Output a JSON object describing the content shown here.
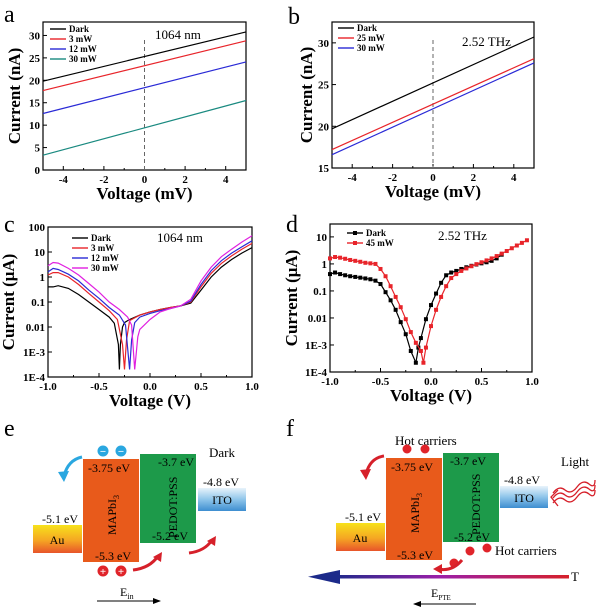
{
  "panels": {
    "a": "a",
    "b": "b",
    "c": "c",
    "d": "d",
    "e": "e",
    "f": "f"
  },
  "chart_data": [
    {
      "id": "a",
      "type": "line",
      "annotation": "1064 nm",
      "xlabel": "Voltage (mV)",
      "ylabel": "Current (nA)",
      "xlim": [
        -5,
        5
      ],
      "ylim": [
        0,
        33
      ],
      "xticks": [
        -4,
        -2,
        0,
        2,
        4
      ],
      "xtick_labels": [
        "-4",
        "-2",
        "0",
        "2",
        "4"
      ],
      "yticks": [
        0,
        5,
        10,
        15,
        20,
        25,
        30
      ],
      "ytick_labels": [
        "0",
        "5",
        "10",
        "15",
        "20",
        "25",
        "30"
      ],
      "vline_x": 0,
      "legend_position": "top-left",
      "series": [
        {
          "name": "Dark",
          "color": "#000000",
          "x": [
            -5,
            5
          ],
          "y": [
            19.8,
            30.8
          ]
        },
        {
          "name": "3 mW",
          "color": "#e8242a",
          "x": [
            -5,
            5
          ],
          "y": [
            17.7,
            28.8
          ]
        },
        {
          "name": "12 mW",
          "color": "#2a2ad6",
          "x": [
            -5,
            5
          ],
          "y": [
            12.6,
            24.1
          ]
        },
        {
          "name": "30 mW",
          "color": "#1a8a80",
          "x": [
            -5,
            5
          ],
          "y": [
            3.3,
            15.5
          ]
        }
      ]
    },
    {
      "id": "b",
      "type": "line",
      "annotation": "2.52 THz",
      "xlabel": "Voltage (mV)",
      "ylabel": "Current (nA)",
      "xlim": [
        -5,
        5
      ],
      "ylim": [
        15,
        32.5
      ],
      "xticks": [
        -4,
        -2,
        0,
        2,
        4
      ],
      "xtick_labels": [
        "-4",
        "-2",
        "0",
        "2",
        "4"
      ],
      "yticks": [
        15,
        20,
        25,
        30
      ],
      "ytick_labels": [
        "15",
        "20",
        "25",
        "30"
      ],
      "vline_x": 0,
      "legend_position": "top-left",
      "series": [
        {
          "name": "Dark",
          "color": "#000000",
          "x": [
            -5,
            5
          ],
          "y": [
            19.7,
            30.7
          ]
        },
        {
          "name": "25 mW",
          "color": "#e8242a",
          "x": [
            -5,
            5
          ],
          "y": [
            17.2,
            28.1
          ]
        },
        {
          "name": "30 mW",
          "color": "#2a2ad6",
          "x": [
            -5,
            5
          ],
          "y": [
            16.6,
            27.6
          ]
        }
      ]
    },
    {
      "id": "c",
      "type": "line",
      "yscale": "log",
      "annotation": "1064 nm",
      "xlabel": "Voltage (V)",
      "ylabel": "Current (μA)",
      "xlim": [
        -1.0,
        1.0
      ],
      "ylim": [
        0.0001,
        100
      ],
      "xticks": [
        -1.0,
        -0.5,
        0.0,
        0.5,
        1.0
      ],
      "xtick_labels": [
        "-1.0",
        "-0.5",
        "0.0",
        "0.5",
        "1.0"
      ],
      "yticks": [
        0.0001,
        0.001,
        0.01,
        0.1,
        1,
        10,
        100
      ],
      "ytick_labels": [
        "1E-4",
        "1E-3",
        "0.01",
        "0.1",
        "1",
        "10",
        "100"
      ],
      "legend_position": "top-left",
      "series": [
        {
          "name": "Dark",
          "color": "#000000",
          "x": [
            -1.0,
            -0.95,
            -0.9,
            -0.8,
            -0.7,
            -0.6,
            -0.5,
            -0.4,
            -0.35,
            -0.31,
            -0.3,
            -0.29,
            -0.27,
            -0.25,
            -0.2,
            -0.1,
            0.0,
            0.1,
            0.2,
            0.3,
            0.4,
            0.5,
            0.6,
            0.7,
            0.8,
            0.9,
            1.0
          ],
          "y": [
            0.4,
            0.4,
            0.45,
            0.35,
            0.2,
            0.1,
            0.05,
            0.025,
            0.014,
            0.002,
            0.0002,
            0.002,
            0.01,
            0.015,
            0.02,
            0.03,
            0.04,
            0.05,
            0.06,
            0.07,
            0.09,
            0.3,
            1.0,
            2.5,
            5,
            9,
            15
          ]
        },
        {
          "name": "3 mW",
          "color": "#e8242a",
          "x": [
            -1.0,
            -0.95,
            -0.9,
            -0.8,
            -0.7,
            -0.6,
            -0.5,
            -0.4,
            -0.32,
            -0.27,
            -0.25,
            -0.23,
            -0.2,
            -0.1,
            0.0,
            0.1,
            0.2,
            0.3,
            0.4,
            0.5,
            0.6,
            0.7,
            0.8,
            0.9,
            1.0
          ],
          "y": [
            1.2,
            1.5,
            1.5,
            1.0,
            0.5,
            0.22,
            0.1,
            0.045,
            0.02,
            0.002,
            0.0002,
            0.003,
            0.018,
            0.03,
            0.04,
            0.05,
            0.06,
            0.07,
            0.1,
            0.4,
            1.4,
            3.5,
            7,
            13,
            22
          ]
        },
        {
          "name": "12 mW",
          "color": "#2a2ad6",
          "x": [
            -1.0,
            -0.95,
            -0.9,
            -0.8,
            -0.7,
            -0.6,
            -0.5,
            -0.4,
            -0.3,
            -0.24,
            -0.2,
            -0.18,
            -0.15,
            -0.1,
            0.0,
            0.1,
            0.2,
            0.3,
            0.4,
            0.5,
            0.6,
            0.7,
            0.8,
            0.9,
            1.0
          ],
          "y": [
            1.6,
            2.2,
            2.0,
            1.3,
            0.7,
            0.3,
            0.14,
            0.06,
            0.03,
            0.012,
            0.0002,
            0.003,
            0.015,
            0.025,
            0.035,
            0.045,
            0.055,
            0.07,
            0.11,
            0.5,
            1.8,
            4.5,
            9,
            16,
            28
          ]
        },
        {
          "name": "30 mW",
          "color": "#e020e0",
          "x": [
            -1.0,
            -0.95,
            -0.9,
            -0.8,
            -0.7,
            -0.6,
            -0.5,
            -0.4,
            -0.3,
            -0.22,
            -0.18,
            -0.15,
            -0.12,
            -0.1,
            0.0,
            0.1,
            0.2,
            0.3,
            0.4,
            0.5,
            0.6,
            0.7,
            0.8,
            0.9,
            1.0
          ],
          "y": [
            2.8,
            3.8,
            3.6,
            2.2,
            1.2,
            0.55,
            0.25,
            0.1,
            0.05,
            0.025,
            0.012,
            0.0002,
            0.004,
            0.008,
            0.02,
            0.04,
            0.055,
            0.07,
            0.13,
            0.7,
            2.5,
            6.5,
            13,
            25,
            45
          ]
        }
      ]
    },
    {
      "id": "d",
      "type": "line",
      "yscale": "log",
      "annotation": "2.52 THz",
      "xlabel": "Voltage (V)",
      "ylabel": "Current (μA)",
      "xlim": [
        -1.0,
        1.0
      ],
      "ylim": [
        0.0001,
        30
      ],
      "xticks": [
        -1.0,
        -0.5,
        0.0,
        0.5,
        1.0
      ],
      "xtick_labels": [
        "-1.0",
        "-0.5",
        "0.0",
        "0.5",
        "1.0"
      ],
      "yticks": [
        0.0001,
        0.001,
        0.01,
        0.1,
        1,
        10
      ],
      "ytick_labels": [
        "1E-4",
        "1E-3",
        "0.01",
        "0.1",
        "1",
        "10"
      ],
      "legend_position": "top-left",
      "markers": "square",
      "series": [
        {
          "name": "Dark",
          "color": "#000000",
          "x": [
            -1.0,
            -0.95,
            -0.9,
            -0.85,
            -0.8,
            -0.75,
            -0.7,
            -0.65,
            -0.6,
            -0.55,
            -0.5,
            -0.45,
            -0.4,
            -0.35,
            -0.3,
            -0.25,
            -0.2,
            -0.15,
            -0.125,
            -0.1,
            -0.05,
            0.0,
            0.05,
            0.1,
            0.15,
            0.2,
            0.25,
            0.3,
            0.35,
            0.4,
            0.45,
            0.5,
            0.55,
            0.6,
            0.65,
            0.7
          ],
          "y": [
            0.42,
            0.48,
            0.42,
            0.38,
            0.35,
            0.33,
            0.31,
            0.29,
            0.27,
            0.24,
            0.18,
            0.09,
            0.045,
            0.02,
            0.007,
            0.0025,
            0.0006,
            0.00022,
            0.0008,
            0.0018,
            0.009,
            0.03,
            0.08,
            0.2,
            0.38,
            0.48,
            0.55,
            0.65,
            0.75,
            0.85,
            0.95,
            1.05,
            1.15,
            1.3,
            1.6,
            2.2
          ]
        },
        {
          "name": "45 mW",
          "color": "#e8242a",
          "x": [
            -1.0,
            -0.95,
            -0.9,
            -0.85,
            -0.8,
            -0.75,
            -0.7,
            -0.65,
            -0.6,
            -0.55,
            -0.5,
            -0.45,
            -0.4,
            -0.35,
            -0.3,
            -0.25,
            -0.2,
            -0.15,
            -0.1,
            -0.075,
            -0.05,
            0.0,
            0.05,
            0.1,
            0.15,
            0.2,
            0.25,
            0.3,
            0.35,
            0.4,
            0.45,
            0.5,
            0.55,
            0.6,
            0.65,
            0.7,
            0.75,
            0.8,
            0.85,
            0.9,
            0.95
          ],
          "y": [
            1.6,
            1.8,
            1.7,
            1.55,
            1.4,
            1.3,
            1.2,
            1.1,
            1.05,
            1.0,
            0.65,
            0.35,
            0.15,
            0.06,
            0.025,
            0.009,
            0.003,
            0.0012,
            0.0006,
            0.00022,
            0.0008,
            0.005,
            0.02,
            0.06,
            0.15,
            0.3,
            0.42,
            0.55,
            0.68,
            0.82,
            0.98,
            1.15,
            1.35,
            1.6,
            1.95,
            2.4,
            3.0,
            3.8,
            4.8,
            6.0,
            7.5
          ]
        }
      ]
    }
  ],
  "diagrams": {
    "e": {
      "condition": "Dark",
      "au": {
        "label": "Au",
        "level": "-5.1 eV"
      },
      "mapbi3": {
        "label": "MAPbI",
        "subscript": "3",
        "top": "-3.75 eV",
        "bottom": "-5.3 eV"
      },
      "pedot": {
        "label": "PEDOT:PSS",
        "top": "-3.7 eV",
        "bottom": "-5.2 eV"
      },
      "ito": {
        "label": "ITO",
        "level": "-4.8 eV"
      },
      "electron_symbol": "−",
      "hole_symbol": "+",
      "field_label": "E",
      "field_subscript": "in"
    },
    "f": {
      "condition": "Light",
      "au": {
        "label": "Au",
        "level": "-5.1 eV"
      },
      "mapbi3": {
        "label": "MAPbI",
        "subscript": "3",
        "top": "-3.75 eV",
        "bottom": "-5.3 eV"
      },
      "pedot": {
        "label": "PEDOT:PSS",
        "top": "-3.7 eV",
        "bottom": "-5.2 eV"
      },
      "ito": {
        "label": "ITO",
        "level": "-4.8 eV"
      },
      "hot_carriers_top": "Hot carriers",
      "hot_carriers_bottom": "Hot carriers",
      "temperature_label": "T",
      "field_label": "E",
      "field_subscript": "PTE"
    }
  }
}
